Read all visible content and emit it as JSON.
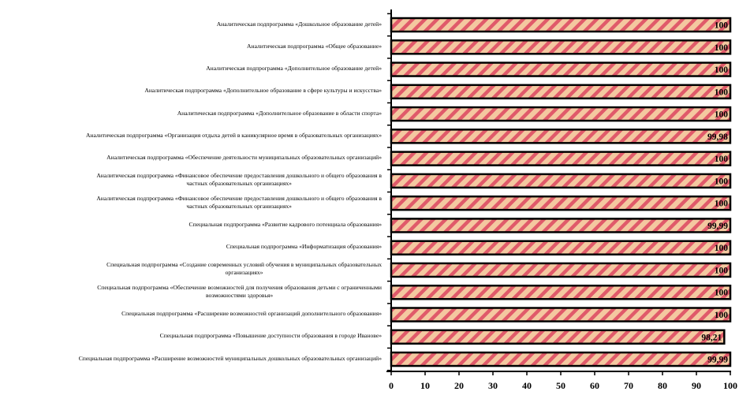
{
  "chart_data": {
    "type": "bar",
    "orientation": "horizontal",
    "categories": [
      "Аналитическая подпрограмма «Дошкольное образование детей»",
      "Аналитическая подпрограмма «Общее образование»",
      "Аналитическая подпрограмма «Дополнительное образование детей»",
      "Аналитическая подпрограмма «Дополнительное образование в сфере культуры и искусства»",
      "Аналитическая подпрограмма «Дополнительное образование в области спорта»",
      "Аналитическая подпрограмма «Организация отдыха детей в каникулярное время в образовательных организациях»",
      "Аналитическая подпрограмма «Обеспечение деятельности муниципальных образовательных организаций»",
      "Аналитическая подпрограмма «Финансовое обеспечение предоставления дошкольного и общего образования в частных образовательных организациях»",
      "Аналитическая подпрограмма «Финансовое обеспечение предоставления дошкольного и общего образования в частных образовательных организациях»",
      "Специальная подпрограмма «Развитие кадрового потенциала образования»",
      "Специальная подпрограмма «Информатизация образования»",
      "Специальная подпрограмма «Создание современных условий обучения в муниципальных образовательных организациях»",
      "Специальная подпрограмма «Обеспечение возможностей для получения образования детьми с ограниченными возможностями здоровья»",
      "Специальная подпрограмма «Расширение возможностей организаций дополнительного образования»",
      "Специальная подпрограмма «Повышение доступности образования в городе Иванове»",
      "Специальная подпрограмма «Расширение возможностей муниципальных дошкольных образовательных организаций»"
    ],
    "label_lines": [
      [
        "Аналитическая подпрограмма «Дошкольное образование детей»"
      ],
      [
        "Аналитическая подпрограмма «Общее образование»"
      ],
      [
        "Аналитическая подпрограмма «Дополнительное образование детей»"
      ],
      [
        "Аналитическая подпрограмма «Дополнительное образование в сфере культуры и искусства»"
      ],
      [
        "Аналитическая подпрограмма «Дополнительное образование в области спорта»"
      ],
      [
        "Аналитическая подпрограмма «Организация отдыха детей в каникулярное время в образовательных организациях»"
      ],
      [
        "Аналитическая подпрограмма «Обеспечение деятельности муниципальных образовательных организаций»"
      ],
      [
        "Аналитическая подпрограмма «Финансовое обеспечение предоставления дошкольного и общего образования в",
        "частных образовательных организациях»"
      ],
      [
        "Аналитическая подпрограмма «Финансовое обеспечение предоставления дошкольного и общего образования в",
        "частных образовательных организациях»"
      ],
      [
        "Специальная подпрограмма «Развитие кадрового потенциала образования»"
      ],
      [
        "Специальная подпрограмма «Информатизация образования»"
      ],
      [
        "Специальная подпрограмма «Создание современных условий обучения в муниципальных образовательных",
        "организациях»"
      ],
      [
        "Специальная подпрограмма «Обеспечение возможностей для получения образования детьми с ограниченными",
        "возможностями здоровья»"
      ],
      [
        "Специальная подпрограмма «Расширение возможностей организаций дополнительного образования»"
      ],
      [
        "Специальная подпрограмма «Повышение доступности образования в городе Иванове»"
      ],
      [
        "Специальная подпрограмма «Расширение возможностей муниципальных дошкольных образовательных организаций»"
      ]
    ],
    "values": [
      100,
      100,
      100,
      100,
      100,
      99.98,
      100,
      100,
      100,
      99.99,
      100,
      100,
      100,
      100,
      98.21,
      99.99
    ],
    "value_labels": [
      "100",
      "100",
      "100",
      "100",
      "100",
      "99,98",
      "100",
      "100",
      "100",
      "99,99",
      "100",
      "100",
      "100",
      "100",
      "98,21",
      "99,99"
    ],
    "x_ticks": [
      0,
      10,
      20,
      30,
      40,
      50,
      60,
      70,
      80,
      90,
      100
    ],
    "xlim": [
      0,
      100
    ],
    "grid": false,
    "legend": "none",
    "title": "",
    "xlabel": "",
    "ylabel": "",
    "colors": {
      "bar_fill": "#f4c8a0",
      "bar_stripe": "#e05a6a",
      "bar_border": "#000000",
      "axis": "#000000"
    }
  }
}
